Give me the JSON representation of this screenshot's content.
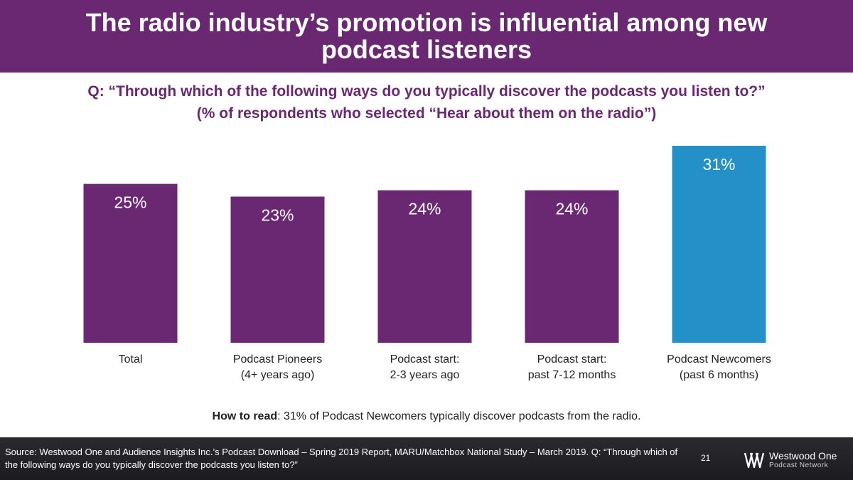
{
  "header": {
    "title": "The radio industry’s promotion is influential among new podcast listeners"
  },
  "question": {
    "line1": "Q: “Through which of the following ways do you typically discover the podcasts you listen to?”",
    "line2": "(% of respondents who selected “Hear about them on the radio”)"
  },
  "chart_data": {
    "type": "bar",
    "categories": [
      [
        "Total"
      ],
      [
        "Podcast Pioneers",
        "(4+ years ago)"
      ],
      [
        "Podcast start:",
        "2-3 years ago"
      ],
      [
        "Podcast start:",
        "past 7-12 months"
      ],
      [
        "Podcast Newcomers",
        "(past 6 months)"
      ]
    ],
    "values": [
      25,
      23,
      24,
      24,
      31
    ],
    "data_labels": [
      "25%",
      "23%",
      "24%",
      "24%",
      "31%"
    ],
    "colors": [
      "#6a2873",
      "#6a2873",
      "#6a2873",
      "#6a2873",
      "#2490c8"
    ],
    "ylim": [
      0,
      31
    ],
    "grid": false,
    "legend": "none"
  },
  "how_to_read": {
    "label": "How to read",
    "text": ": 31% of Podcast Newcomers typically discover podcasts from the radio."
  },
  "footer": {
    "source": "Source: Westwood One and Audience Insights Inc.’s Podcast Download – Spring 2019 Report, MARU/Matchbox National Study – March 2019. Q: “Through which of the following ways do you typically discover the podcasts you listen to?”",
    "page_number": "21",
    "logo_name": "Westwood One",
    "logo_sub": "Podcast Network"
  }
}
